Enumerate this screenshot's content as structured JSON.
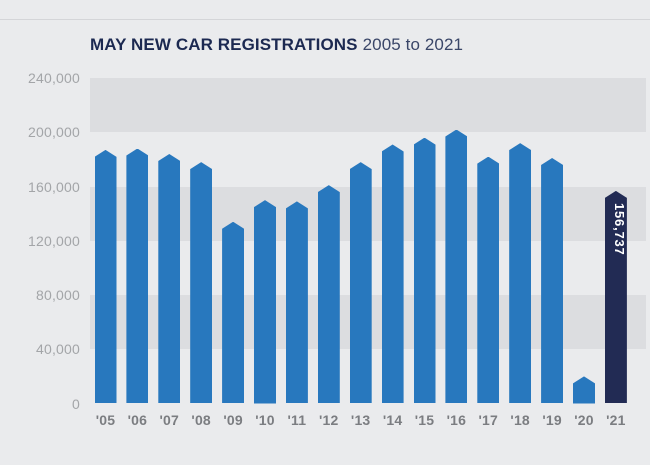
{
  "header": {
    "title_bold": "MAY NEW CAR REGISTRATIONS",
    "title_range": "2005 to 2021"
  },
  "chart_data": {
    "type": "bar",
    "title": "MAY NEW CAR REGISTRATIONS 2005 to 2021",
    "categories": [
      "'05",
      "'06",
      "'07",
      "'08",
      "'09",
      "'10",
      "'11",
      "'12",
      "'13",
      "'14",
      "'15",
      "'16",
      "'17",
      "'18",
      "'19",
      "'20",
      "'21"
    ],
    "values": [
      187000,
      188000,
      184000,
      178000,
      134000,
      150000,
      149000,
      161000,
      178000,
      191000,
      196000,
      202000,
      182000,
      192000,
      181000,
      20000,
      156737
    ],
    "series_name": "May new car registrations",
    "xlabel": "",
    "ylabel": "",
    "ylim": [
      0,
      240000
    ],
    "ytick_interval": 40000,
    "ytick_labels_ascending": [
      "0",
      "40,000",
      "80,000",
      "120,000",
      "160,000",
      "200,000",
      "240,000"
    ],
    "legend": "none",
    "grid": "horizontal alternating background bands",
    "highlight": {
      "category": "'21",
      "value": 156737,
      "value_label": "156,737",
      "color": "#222b54"
    },
    "colors": {
      "bar": "#2878be",
      "highlight_bar": "#222b54",
      "band_dark": "#dcdde0",
      "band_light": "#eaebed",
      "value_label_text": "#ffffff"
    }
  }
}
